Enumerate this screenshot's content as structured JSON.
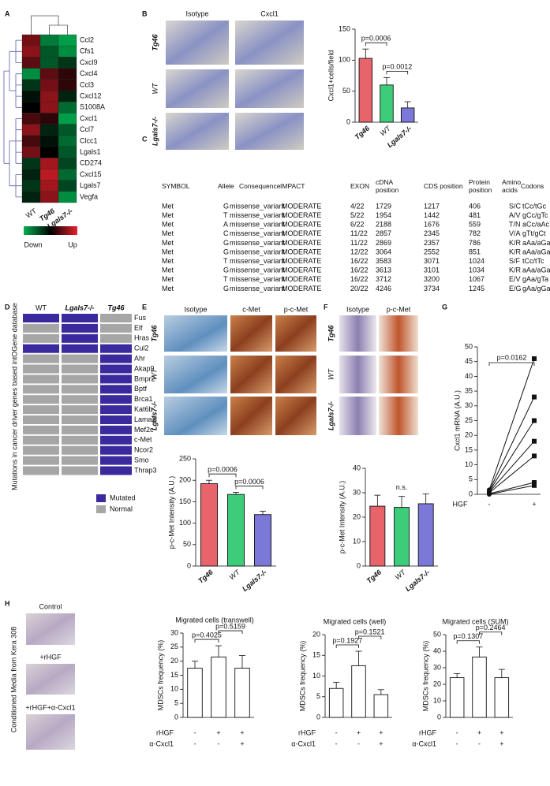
{
  "panel_labels": [
    "A",
    "B",
    "C",
    "D",
    "E",
    "F",
    "G",
    "H"
  ],
  "images": [
    {
      "column_labels": [
        "Isotype",
        "Cxcl1"
      ],
      "row_labels": [
        "Tg46",
        "WT",
        "Lgals7-/-"
      ]
    },
    {
      "column_labels": [
        "Isotype",
        "c-Met",
        "p-c-Met"
      ],
      "row_labels": [
        "Tg46",
        "WT",
        "Lgals7-/-"
      ]
    },
    {
      "column_labels": [
        "Isotype",
        "p-c-Met"
      ],
      "row_labels": [
        "Tg46",
        "WT",
        "Lgals7-/-"
      ]
    },
    {
      "row_labels": [
        "Control",
        "+rHGF",
        "+rHGF+α-Cxcl1"
      ],
      "side_label": "Conditioned Media from Kera 308"
    }
  ],
  "chart_data": [
    {
      "type": "heatmap",
      "rows": [
        "Ccl2",
        "Cfs1",
        "Cxcl9",
        "Cxcl4",
        "Ccl3",
        "Cxcl12",
        "S1008A",
        "Cxcl1",
        "Ccl7",
        "Clcc1",
        "Lgals1",
        "CD274",
        "Cxcl15",
        "Lgals7",
        "Vegfa"
      ],
      "columns": [
        "WT",
        "Tg46",
        "Lgals7-/-"
      ],
      "values": [
        [
          0.5,
          -0.7,
          -0.9
        ],
        [
          0.6,
          -0.5,
          -0.8
        ],
        [
          0.4,
          -0.5,
          -0.3
        ],
        [
          -0.8,
          0.4,
          0.2
        ],
        [
          -0.3,
          0.5,
          0.2
        ],
        [
          -0.1,
          0.6,
          -0.2
        ],
        [
          0.0,
          0.6,
          -0.6
        ],
        [
          0.3,
          0.2,
          -0.9
        ],
        [
          0.6,
          -0.2,
          -0.5
        ],
        [
          0.3,
          -0.1,
          -0.6
        ],
        [
          0.5,
          0.0,
          -0.5
        ],
        [
          -0.3,
          0.7,
          -0.4
        ],
        [
          -0.2,
          0.8,
          -0.6
        ],
        [
          -0.3,
          0.7,
          -0.4
        ],
        [
          -0.2,
          0.6,
          -0.8
        ]
      ],
      "clim": [
        -1,
        1
      ],
      "colors": [
        "#00b050",
        "#000000",
        "#e8202a"
      ],
      "legend_labels": [
        "Down",
        "Up"
      ]
    },
    {
      "type": "bar",
      "ylabel": "Cxcl1+cells/field",
      "categories": [
        "Tg46",
        "WT",
        "Lgals7-/-"
      ],
      "values": [
        103,
        60,
        23
      ],
      "errors": [
        15,
        12,
        10
      ],
      "colors": [
        "#e8646b",
        "#3dcc7a",
        "#7b78d8"
      ],
      "ylim": [
        0,
        150
      ],
      "yticks": [
        0,
        50,
        100,
        150
      ],
      "annotations": [
        "p=0.0006",
        "p=0.0012"
      ]
    },
    {
      "type": "table",
      "header": [
        "SYMBOL",
        "Allele",
        "Consequence",
        "IMPACT",
        "EXON",
        "cDNA position",
        "CDS position",
        "Protein position",
        "Amino acids",
        "Codons"
      ],
      "rows": [
        [
          "Met",
          "G",
          "missense_variant",
          "MODERATE",
          "4/22",
          "1729",
          "1217",
          "406",
          "S/C",
          "tCc/tGc"
        ],
        [
          "Met",
          "T",
          "missense_variant",
          "MODERATE",
          "5/22",
          "1954",
          "1442",
          "481",
          "A/V",
          "gCc/gTc"
        ],
        [
          "Met",
          "A",
          "missense_variant",
          "MODERATE",
          "6/22",
          "2188",
          "1676",
          "559",
          "T/N",
          "aCc/aAc"
        ],
        [
          "Met",
          "C",
          "missense_variant",
          "MODERATE",
          "11/22",
          "2857",
          "2345",
          "782",
          "V/A",
          "gTt/gCt"
        ],
        [
          "Met",
          "G",
          "missense_variant",
          "MODERATE",
          "11/22",
          "2869",
          "2357",
          "786",
          "K/R",
          "aAa/aGa"
        ],
        [
          "Met",
          "G",
          "missense_variant",
          "MODERATE",
          "12/22",
          "3064",
          "2552",
          "851",
          "K/R",
          "aAa/aGa"
        ],
        [
          "Met",
          "T",
          "missense_variant",
          "MODERATE",
          "16/22",
          "3583",
          "3071",
          "1024",
          "S/F",
          "tCc/tTc"
        ],
        [
          "Met",
          "G",
          "missense_variant",
          "MODERATE",
          "16/22",
          "3613",
          "3101",
          "1034",
          "K/R",
          "aAa/aGa"
        ],
        [
          "Met",
          "T",
          "missense_variant",
          "MODERATE",
          "16/22",
          "3712",
          "3200",
          "1067",
          "E/V",
          "gAa/gTa"
        ],
        [
          "Met",
          "G",
          "missense_variant",
          "MODERATE",
          "20/22",
          "4246",
          "3734",
          "1245",
          "E/G",
          "gAa/gGa"
        ]
      ]
    },
    {
      "type": "matrix",
      "ylabel": "Mutations in cancer driver genes based intOGene database",
      "columns": [
        "WT",
        "Lgals7-/-",
        "Tg46"
      ],
      "rows": [
        "Fus",
        "Elf",
        "Hras",
        "Cul2",
        "Ahr",
        "Akap9",
        "Bmpr2",
        "Bptf",
        "Brca1",
        "Kat6b",
        "Lama2",
        "Mef2c",
        "c-Met",
        "Ncor2",
        "Smo",
        "Thrap3"
      ],
      "values": [
        [
          1,
          1,
          0
        ],
        [
          0,
          1,
          0
        ],
        [
          0,
          1,
          0
        ],
        [
          1,
          1,
          1
        ],
        [
          0,
          0,
          1
        ],
        [
          0,
          0,
          1
        ],
        [
          0,
          0,
          1
        ],
        [
          0,
          0,
          1
        ],
        [
          0,
          0,
          1
        ],
        [
          0,
          0,
          1
        ],
        [
          0,
          0,
          1
        ],
        [
          0,
          0,
          1
        ],
        [
          0,
          0,
          1
        ],
        [
          0,
          0,
          1
        ],
        [
          0,
          0,
          1
        ],
        [
          0,
          0,
          1
        ]
      ],
      "legend": [
        {
          "name": "Mutated",
          "color": "#3b2a9e"
        },
        {
          "name": "Normal",
          "color": "#a6a6a6"
        }
      ]
    },
    {
      "type": "bar",
      "ylabel": "p-c-Met Intensity (A.U.)",
      "categories": [
        "Tg46",
        "WT",
        "Lgals7-/-"
      ],
      "values": [
        192,
        167,
        120
      ],
      "errors": [
        8,
        5,
        8
      ],
      "colors": [
        "#e8646b",
        "#3dcc7a",
        "#7b78d8"
      ],
      "ylim": [
        0,
        250
      ],
      "yticks": [
        0,
        50,
        100,
        150,
        200,
        250
      ],
      "annotations": [
        "p=0.0006",
        "p=0.0006"
      ]
    },
    {
      "type": "bar",
      "ylabel": "p-c-Met Intensity (A.U.)",
      "categories": [
        "Tg46",
        "WT",
        "Lgals7-/-"
      ],
      "values": [
        24.5,
        24,
        25.5
      ],
      "errors": [
        4.5,
        4.5,
        4
      ],
      "colors": [
        "#e8646b",
        "#3dcc7a",
        "#7b78d8"
      ],
      "ylim": [
        0,
        40
      ],
      "yticks": [
        0,
        10,
        20,
        30,
        40
      ],
      "annotations": [
        "n.s."
      ]
    },
    {
      "type": "paired",
      "ylabel": "Cxcl1 mRNA (A.U.)",
      "xlabel": "HGF",
      "categories": [
        "-",
        "+"
      ],
      "series": [
        {
          "values": [
            1.5,
            46
          ]
        },
        {
          "values": [
            1.2,
            33
          ]
        },
        {
          "values": [
            1.0,
            25
          ]
        },
        {
          "values": [
            0.8,
            18
          ]
        },
        {
          "values": [
            0.5,
            13
          ]
        },
        {
          "values": [
            0.2,
            4
          ]
        },
        {
          "values": [
            0.0,
            3
          ]
        }
      ],
      "ylim": [
        0,
        50
      ],
      "yticks": [
        0,
        5,
        10,
        15,
        20,
        25,
        30,
        35,
        40,
        45,
        50
      ],
      "annotations": [
        "p=0.0162"
      ]
    },
    {
      "type": "bar",
      "title": "Migrated cells (transwell)",
      "ylabel": "MDSCs frequency (%)",
      "values": [
        17.5,
        21.5,
        17.5
      ],
      "errors": [
        2.5,
        4,
        4.5
      ],
      "color": "#ffffff",
      "conditions": [
        {
          "name": "rHGF",
          "values": [
            "-",
            "+",
            "+"
          ]
        },
        {
          "name": "α-Cxcl1",
          "values": [
            "-",
            "-",
            "+"
          ]
        }
      ],
      "ylim": [
        0,
        30
      ],
      "yticks": [
        0,
        5,
        10,
        15,
        20,
        25,
        30
      ],
      "annotations": [
        "p=0.4025",
        "p=0.5159"
      ]
    },
    {
      "type": "bar",
      "title": "Migrated cells (well)",
      "ylabel": "MDSCs frequency (%)",
      "values": [
        7,
        12.5,
        5.5
      ],
      "errors": [
        1.5,
        3.5,
        1.2
      ],
      "color": "#ffffff",
      "conditions": [
        {
          "name": "rHGF",
          "values": [
            "-",
            "+",
            "+"
          ]
        },
        {
          "name": "α-Cxcl1",
          "values": [
            "-",
            "-",
            "+"
          ]
        }
      ],
      "ylim": [
        0,
        20
      ],
      "yticks": [
        0,
        5,
        10,
        15,
        20
      ],
      "annotations": [
        "p=0.1927",
        "p=0.1521"
      ]
    },
    {
      "type": "bar",
      "title": "Migrated cells (SUM)",
      "ylabel": "MDSCs frequency (%)",
      "values": [
        24,
        36.5,
        24
      ],
      "errors": [
        2.5,
        6,
        5
      ],
      "color": "#ffffff",
      "conditions": [
        {
          "name": "rHGF",
          "values": [
            "-",
            "+",
            "+"
          ]
        },
        {
          "name": "α-Cxcl1",
          "values": [
            "-",
            "-",
            "+"
          ]
        }
      ],
      "ylim": [
        0,
        50
      ],
      "yticks": [
        0,
        10,
        20,
        30,
        40,
        50
      ],
      "annotations": [
        "p=0.1307",
        "p=0.2464"
      ]
    }
  ]
}
